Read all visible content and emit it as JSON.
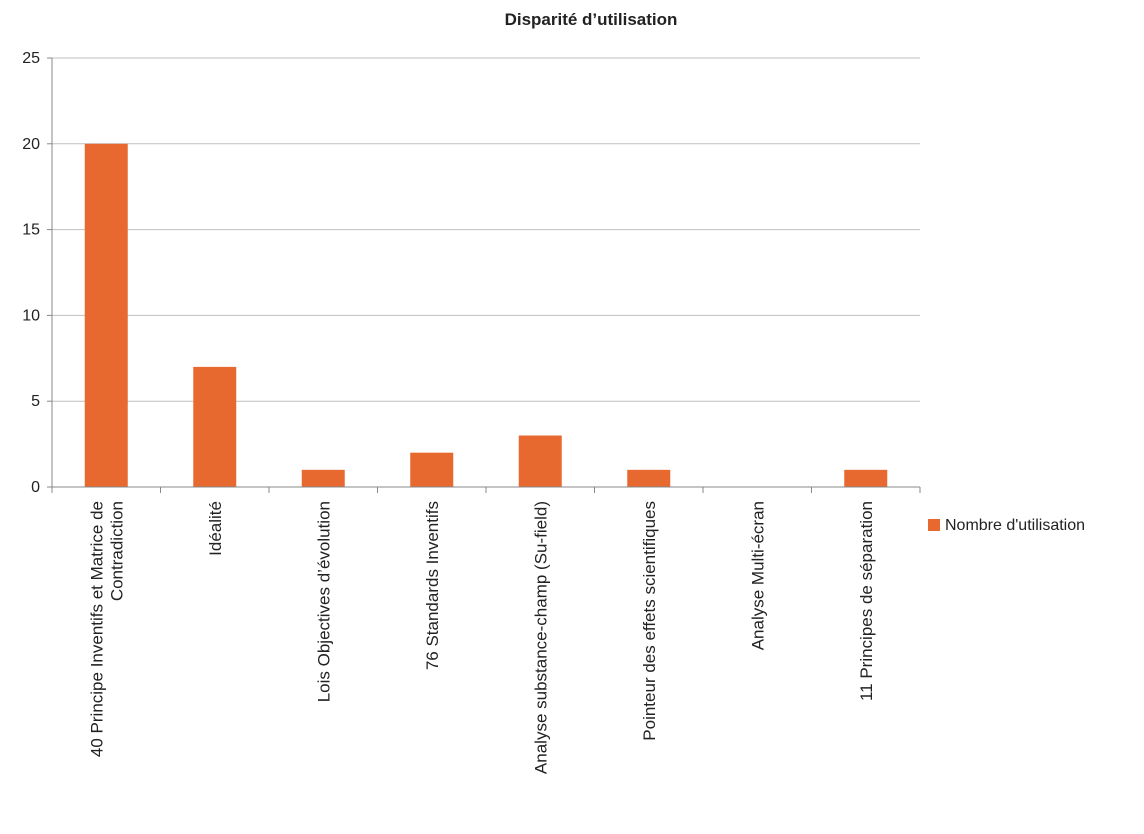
{
  "chart_data": {
    "type": "bar",
    "title": "Disparité d’utilisation",
    "xlabel": "",
    "ylabel": "",
    "ylim": [
      0,
      25
    ],
    "yticks": [
      0,
      5,
      10,
      15,
      20,
      25
    ],
    "grid": true,
    "legend_position": "right",
    "bar_color": "#e8692f",
    "grid_color": "#bfbfbf",
    "categories": [
      "40 Principe Inventifs et Matrice de Contradiction",
      "Idéalité",
      "Lois Objectives d’évolution",
      "76 Standards Inventifs",
      "Analyse substance-champ (Su-field)",
      "Pointeur des effets scientifiques",
      "Analyse Multi-écran",
      "11 Principes de séparation"
    ],
    "category_lines": [
      [
        "40 Principe Inventifs et Matrice de",
        "Contradiction"
      ],
      [
        "Idéalité"
      ],
      [
        "Lois Objectives d’évolution"
      ],
      [
        "76 Standards Inventifs"
      ],
      [
        "Analyse substance-champ (Su-field)"
      ],
      [
        "Pointeur des effets scientifiques"
      ],
      [
        "Analyse Multi-écran"
      ],
      [
        "11 Principes de séparation"
      ]
    ],
    "series": [
      {
        "name": "Nombre d'utilisation",
        "values": [
          20,
          7,
          1,
          2,
          3,
          1,
          0,
          1
        ]
      }
    ]
  }
}
